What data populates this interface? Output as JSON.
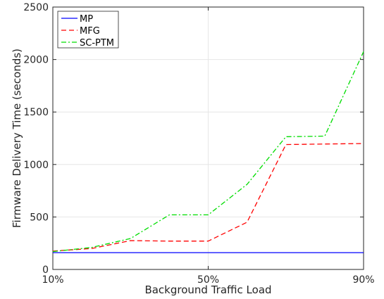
{
  "chart_data": {
    "type": "line",
    "title": "",
    "xlabel": "Background Traffic Load",
    "ylabel": "Firmware Delivery Time (seconds)",
    "x": [
      10,
      20,
      30,
      40,
      50,
      60,
      70,
      80,
      90
    ],
    "x_tick_values": [
      10,
      50,
      90
    ],
    "x_tick_labels": [
      "10%",
      "50%",
      "90%"
    ],
    "xlim": [
      10,
      90
    ],
    "ylim": [
      0,
      2500
    ],
    "y_ticks": [
      0,
      500,
      1000,
      1500,
      2000,
      2500
    ],
    "grid": true,
    "legend_position": "top-left",
    "series": [
      {
        "name": "MP",
        "color": "#0000ff",
        "dash": "solid",
        "values": [
          160,
          160,
          160,
          160,
          160,
          160,
          160,
          160,
          160
        ]
      },
      {
        "name": "MFG",
        "color": "#ff0000",
        "dash": "dashed",
        "values": [
          175,
          200,
          275,
          270,
          270,
          450,
          1190,
          1195,
          1200
        ]
      },
      {
        "name": "SC-PTM",
        "color": "#00dd00",
        "dash": "dashdot",
        "values": [
          170,
          210,
          295,
          520,
          520,
          810,
          1265,
          1270,
          2075
        ]
      }
    ]
  }
}
